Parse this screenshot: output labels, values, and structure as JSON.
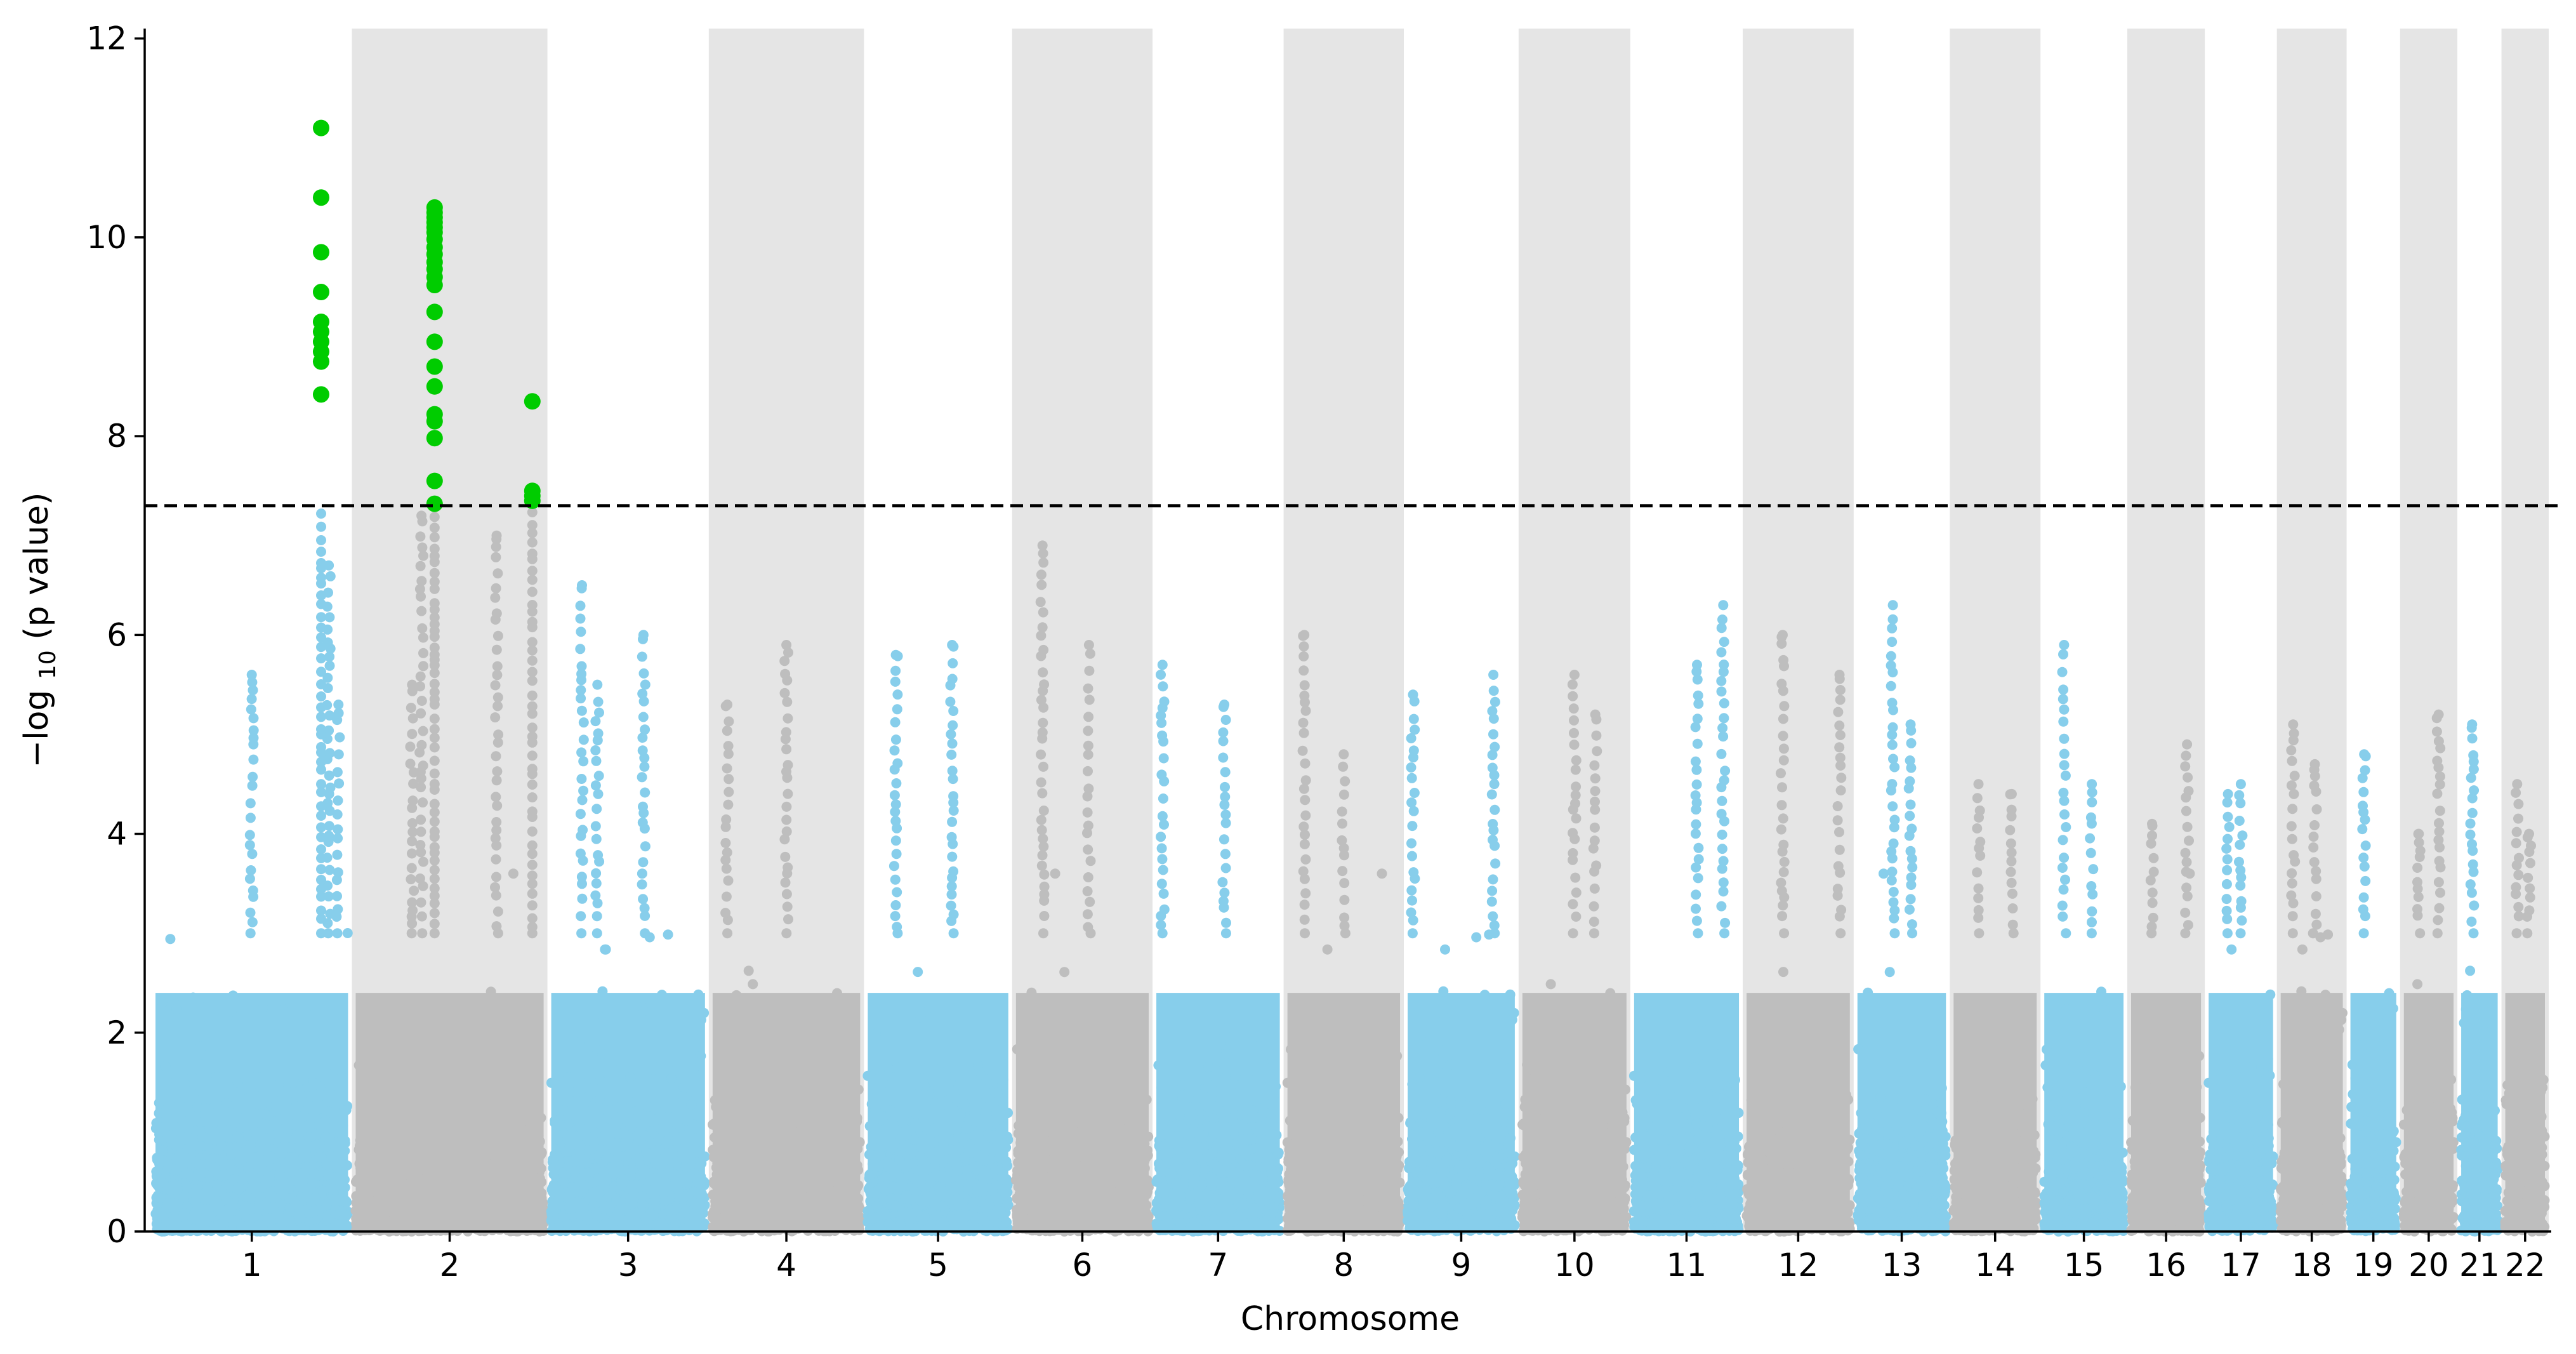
{
  "chart_data": {
    "type": "scatter",
    "subtype": "manhattan",
    "title": "",
    "xlabel": "Chromosome",
    "ylabel_prefix": "−log",
    "ylabel_sub": "10",
    "ylabel_suffix": " (p value)",
    "ylim": [
      0,
      12.1
    ],
    "yticks": [
      0,
      2,
      4,
      6,
      8,
      10,
      12
    ],
    "significance_threshold": 7.3,
    "colors": {
      "odd": "#87CEEB",
      "even": "#BEBEBE",
      "significant": "#00CC00",
      "band": "#E5E5E5",
      "threshold": "#000000"
    },
    "chromosomes": [
      {
        "label": "1",
        "size": 248,
        "peaks": [
          {
            "pos": 0.5,
            "y": 5.6
          },
          {
            "pos": 0.9,
            "y": 6.7
          },
          {
            "pos": 0.95,
            "y": 5.3
          }
        ]
      },
      {
        "label": "2",
        "size": 242,
        "peaks": [
          {
            "pos": 0.35,
            "y": 7.2
          },
          {
            "pos": 0.75,
            "y": 7.0
          },
          {
            "pos": 0.3,
            "y": 5.5
          }
        ]
      },
      {
        "label": "3",
        "size": 198,
        "peaks": [
          {
            "pos": 0.3,
            "y": 5.5
          },
          {
            "pos": 0.6,
            "y": 6.0
          },
          {
            "pos": 0.2,
            "y": 6.5
          }
        ]
      },
      {
        "label": "4",
        "size": 190,
        "peaks": [
          {
            "pos": 0.5,
            "y": 5.9
          },
          {
            "pos": 0.1,
            "y": 5.3
          }
        ]
      },
      {
        "label": "5",
        "size": 181,
        "peaks": [
          {
            "pos": 0.2,
            "y": 5.8
          },
          {
            "pos": 0.6,
            "y": 5.9
          }
        ]
      },
      {
        "label": "6",
        "size": 171,
        "peaks": [
          {
            "pos": 0.2,
            "y": 6.9
          },
          {
            "pos": 0.55,
            "y": 5.9
          }
        ]
      },
      {
        "label": "7",
        "size": 159,
        "peaks": [
          {
            "pos": 0.55,
            "y": 5.3
          },
          {
            "pos": 0.05,
            "y": 5.7
          }
        ]
      },
      {
        "label": "8",
        "size": 145,
        "peaks": [
          {
            "pos": 0.15,
            "y": 6.0
          },
          {
            "pos": 0.5,
            "y": 4.8
          }
        ]
      },
      {
        "label": "9",
        "size": 138,
        "peaks": [
          {
            "pos": 0.05,
            "y": 5.4
          },
          {
            "pos": 0.8,
            "y": 5.6
          }
        ]
      },
      {
        "label": "10",
        "size": 134,
        "peaks": [
          {
            "pos": 0.5,
            "y": 5.6
          },
          {
            "pos": 0.7,
            "y": 5.2
          }
        ]
      },
      {
        "label": "11",
        "size": 135,
        "peaks": [
          {
            "pos": 0.6,
            "y": 5.7
          },
          {
            "pos": 0.85,
            "y": 6.3
          }
        ]
      },
      {
        "label": "12",
        "size": 133,
        "peaks": [
          {
            "pos": 0.35,
            "y": 6.0
          },
          {
            "pos": 0.9,
            "y": 5.6
          }
        ]
      },
      {
        "label": "13",
        "size": 114,
        "peaks": [
          {
            "pos": 0.4,
            "y": 6.3
          },
          {
            "pos": 0.6,
            "y": 5.1
          }
        ]
      },
      {
        "label": "14",
        "size": 107,
        "peaks": [
          {
            "pos": 0.3,
            "y": 4.5
          },
          {
            "pos": 0.7,
            "y": 4.4
          }
        ]
      },
      {
        "label": "15",
        "size": 102,
        "peaks": [
          {
            "pos": 0.25,
            "y": 5.9
          },
          {
            "pos": 0.6,
            "y": 4.5
          }
        ]
      },
      {
        "label": "16",
        "size": 90,
        "peaks": [
          {
            "pos": 0.8,
            "y": 4.9
          },
          {
            "pos": 0.3,
            "y": 4.1
          }
        ]
      },
      {
        "label": "17",
        "size": 83,
        "peaks": [
          {
            "pos": 0.5,
            "y": 4.5
          },
          {
            "pos": 0.3,
            "y": 4.4
          }
        ]
      },
      {
        "label": "18",
        "size": 80,
        "peaks": [
          {
            "pos": 0.2,
            "y": 5.1
          },
          {
            "pos": 0.55,
            "y": 4.7
          }
        ]
      },
      {
        "label": "19",
        "size": 59,
        "peaks": [
          {
            "pos": 0.3,
            "y": 4.8
          }
        ]
      },
      {
        "label": "20",
        "size": 64,
        "peaks": [
          {
            "pos": 0.7,
            "y": 5.2
          },
          {
            "pos": 0.3,
            "y": 4.0
          }
        ]
      },
      {
        "label": "21",
        "size": 47,
        "peaks": [
          {
            "pos": 0.3,
            "y": 5.1
          }
        ]
      },
      {
        "label": "22",
        "size": 51,
        "peaks": [
          {
            "pos": 0.3,
            "y": 4.5
          },
          {
            "pos": 0.6,
            "y": 4.0
          }
        ]
      }
    ],
    "significant_hits": [
      {
        "chrom": "1",
        "pos": 0.86,
        "values": [
          11.1,
          10.4,
          9.85,
          9.45,
          9.15,
          9.05,
          8.95,
          8.85,
          8.75,
          8.42
        ]
      },
      {
        "chrom": "2",
        "pos": 0.42,
        "values": [
          10.3,
          10.25,
          10.2,
          10.15,
          10.1,
          10.05,
          9.98,
          9.9,
          9.83,
          9.75,
          9.68,
          9.6,
          9.52,
          9.25,
          8.95,
          8.7,
          8.5,
          8.22,
          8.15,
          7.98,
          7.55,
          7.32
        ]
      },
      {
        "chrom": "2",
        "pos": 0.94,
        "values": [
          8.35,
          7.45,
          7.4,
          7.35
        ]
      }
    ]
  }
}
